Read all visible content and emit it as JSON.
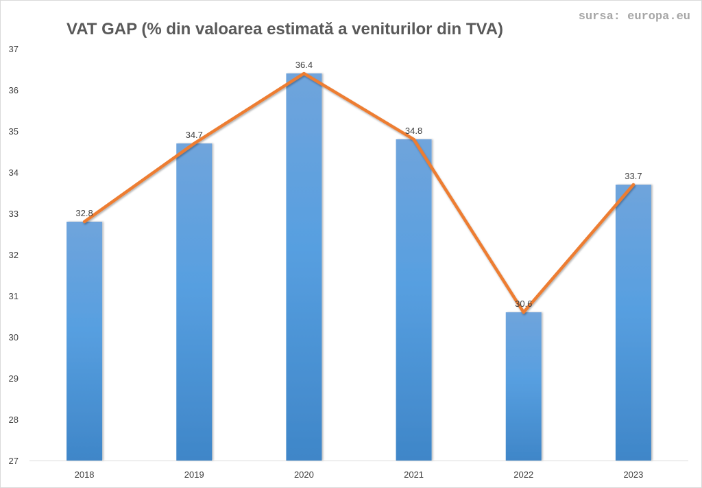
{
  "source_text": "sursa: europa.eu",
  "chart_data": {
    "type": "bar",
    "title": "VAT GAP (% din valoarea estimată a veniturilor din TVA)",
    "categories": [
      "2018",
      "2019",
      "2020",
      "2021",
      "2022",
      "2023"
    ],
    "values": [
      32.8,
      34.7,
      36.4,
      34.8,
      30.6,
      33.7
    ],
    "data_labels": [
      "32.8",
      "34.7",
      "36.4",
      "34.8",
      "30.6",
      "33.7"
    ],
    "overlay_line": true,
    "ylim": [
      27,
      37
    ],
    "yticks": [
      "27",
      "28",
      "29",
      "30",
      "31",
      "32",
      "33",
      "34",
      "35",
      "36",
      "37"
    ],
    "xlabel": "",
    "ylabel": "",
    "grid": false,
    "colors": {
      "bar_top": "#6fa4dc",
      "bar_mid": "#579fe0",
      "bar_bottom": "#3f86c8",
      "line": "#ed7d31",
      "axis": "#d9d9d9",
      "tick_text": "#404040"
    }
  }
}
